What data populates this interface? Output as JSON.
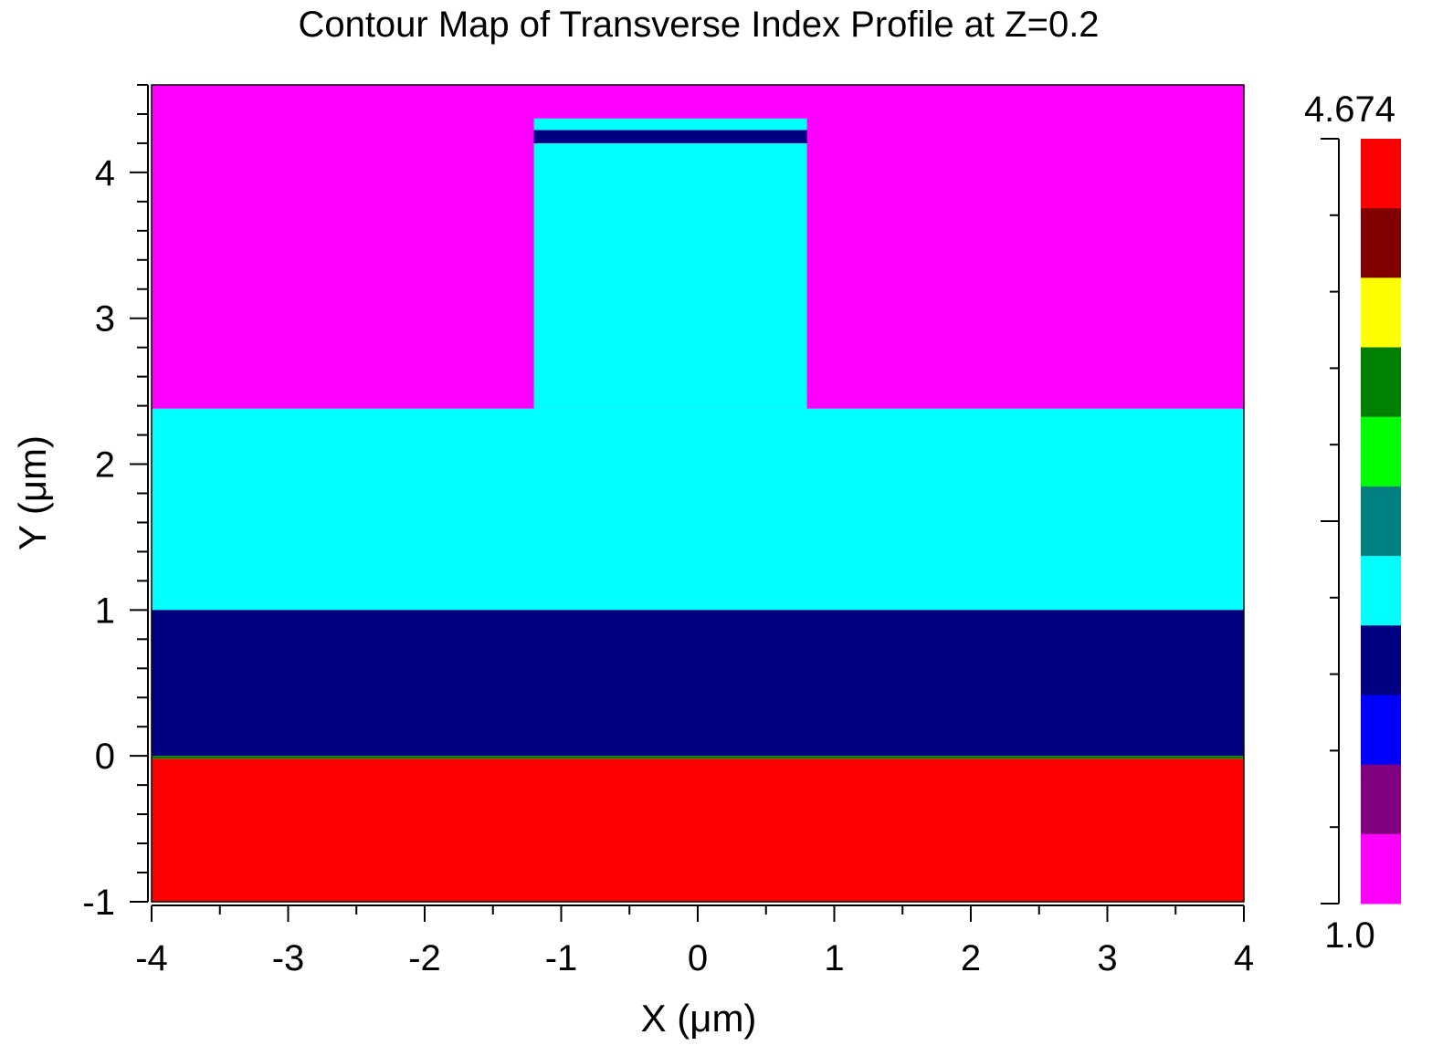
{
  "chart_data": {
    "type": "heatmap",
    "title": "Contour Map of Transverse Index Profile at Z=0.2",
    "xlabel": "X (μm)",
    "ylabel": "Y (μm)",
    "xlim": [
      -4,
      4
    ],
    "ylim": [
      -1,
      4.6
    ],
    "x_ticks": [
      "-4",
      "-3",
      "-2",
      "-1",
      "0",
      "1",
      "2",
      "3",
      "4"
    ],
    "y_ticks": [
      "-1",
      "0",
      "1",
      "2",
      "3",
      "4"
    ],
    "colorbar": {
      "max_label": "4.674",
      "min_label": "1.0",
      "colors": [
        "#ff0000",
        "#800000",
        "#ffff00",
        "#008000",
        "#00ff00",
        "#008080",
        "#00ffff",
        "#000080",
        "#0000ff",
        "#800080",
        "#ff00ff"
      ]
    },
    "regions": [
      {
        "color": "#ff00ff",
        "x": [
          -4,
          4
        ],
        "y": [
          2.38,
          4.6
        ]
      },
      {
        "color": "#00ffff",
        "x": [
          -4,
          4
        ],
        "y": [
          1.0,
          2.38
        ]
      },
      {
        "color": "#00ffff",
        "x": [
          -1.2,
          0.8
        ],
        "y": [
          2.38,
          4.2
        ]
      },
      {
        "color": "#000080",
        "x": [
          -1.2,
          0.8
        ],
        "y": [
          4.2,
          4.29
        ]
      },
      {
        "color": "#00ffff",
        "x": [
          -1.2,
          0.8
        ],
        "y": [
          4.29,
          4.37
        ]
      },
      {
        "color": "#000080",
        "x": [
          -4,
          4
        ],
        "y": [
          0.0,
          1.0
        ]
      },
      {
        "color": "#008000",
        "x": [
          -4,
          4
        ],
        "y": [
          -0.02,
          0.0
        ]
      },
      {
        "color": "#ff0000",
        "x": [
          -4,
          4
        ],
        "y": [
          -1,
          -0.02
        ]
      }
    ]
  }
}
